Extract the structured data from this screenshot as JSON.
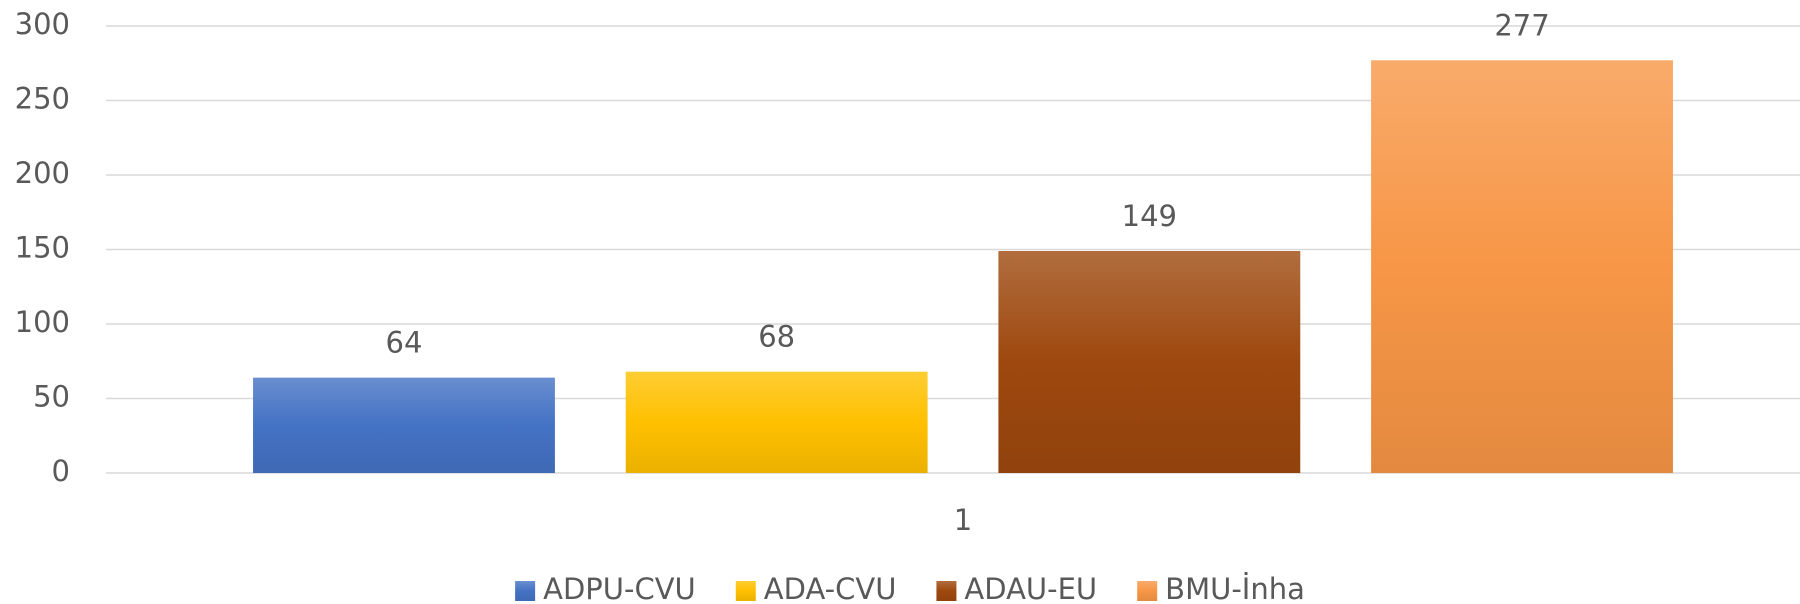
{
  "chart_data": {
    "type": "bar",
    "categories": [
      "1"
    ],
    "series": [
      {
        "name": "ADPU-CVU",
        "color": "#4472c4",
        "values": [
          64
        ]
      },
      {
        "name": "ADA-CVU",
        "color": "#ffc000",
        "values": [
          68
        ]
      },
      {
        "name": "ADAU-EU",
        "color": "#9e480e",
        "values": [
          149
        ]
      },
      {
        "name": "BMU-İnha",
        "color": "#f79646",
        "values": [
          277
        ]
      }
    ],
    "ylim": [
      0,
      300
    ],
    "yticks": [
      0,
      50,
      100,
      150,
      200,
      250,
      300
    ],
    "grid": true,
    "legend": "bottom"
  }
}
